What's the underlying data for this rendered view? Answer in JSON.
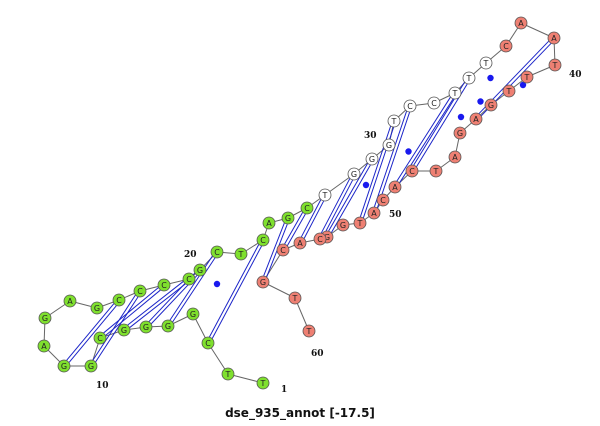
{
  "caption": "dse_935_annot [-17.5]",
  "colors": {
    "green": "#7fe02e",
    "red": "#ee8073",
    "white": "#ffffff",
    "backbone": "#666666",
    "pair_line": "#1c25c8",
    "wobble_dot": "#1919ee"
  },
  "sequence": [
    {
      "n": 1,
      "base": "T",
      "color": "green"
    },
    {
      "n": 2,
      "base": "T",
      "color": "green"
    },
    {
      "n": 3,
      "base": "C",
      "color": "green"
    },
    {
      "n": 4,
      "base": "G",
      "color": "green"
    },
    {
      "n": 5,
      "base": "G",
      "color": "green"
    },
    {
      "n": 6,
      "base": "G",
      "color": "green"
    },
    {
      "n": 7,
      "base": "G",
      "color": "green"
    },
    {
      "n": 8,
      "base": "C",
      "color": "green"
    },
    {
      "n": 9,
      "base": "G",
      "color": "green"
    },
    {
      "n": 10,
      "base": "G",
      "color": "green"
    },
    {
      "n": 11,
      "base": "A",
      "color": "green"
    },
    {
      "n": 12,
      "base": "G",
      "color": "green"
    },
    {
      "n": 13,
      "base": "A",
      "color": "green"
    },
    {
      "n": 14,
      "base": "G",
      "color": "green"
    },
    {
      "n": 15,
      "base": "C",
      "color": "green"
    },
    {
      "n": 16,
      "base": "C",
      "color": "green"
    },
    {
      "n": 17,
      "base": "C",
      "color": "green"
    },
    {
      "n": 18,
      "base": "C",
      "color": "green"
    },
    {
      "n": 19,
      "base": "G",
      "color": "green"
    },
    {
      "n": 20,
      "base": "C",
      "color": "green"
    },
    {
      "n": 21,
      "base": "T",
      "color": "green"
    },
    {
      "n": 22,
      "base": "C",
      "color": "green"
    },
    {
      "n": 23,
      "base": "A",
      "color": "green"
    },
    {
      "n": 24,
      "base": "G",
      "color": "green"
    },
    {
      "n": 25,
      "base": "C",
      "color": "green"
    },
    {
      "n": 26,
      "base": "T",
      "color": "white"
    },
    {
      "n": 27,
      "base": "G",
      "color": "white"
    },
    {
      "n": 28,
      "base": "G",
      "color": "white"
    },
    {
      "n": 29,
      "base": "G",
      "color": "white"
    },
    {
      "n": 30,
      "base": "T",
      "color": "white"
    },
    {
      "n": 31,
      "base": "C",
      "color": "white"
    },
    {
      "n": 32,
      "base": "C",
      "color": "white"
    },
    {
      "n": 33,
      "base": "T",
      "color": "white"
    },
    {
      "n": 34,
      "base": "T",
      "color": "white"
    },
    {
      "n": 35,
      "base": "T",
      "color": "white"
    },
    {
      "n": 36,
      "base": "C",
      "color": "red"
    },
    {
      "n": 37,
      "base": "A",
      "color": "red"
    },
    {
      "n": 38,
      "base": "A",
      "color": "red"
    },
    {
      "n": 39,
      "base": "T",
      "color": "red"
    },
    {
      "n": 40,
      "base": "T",
      "color": "red"
    },
    {
      "n": 41,
      "base": "T",
      "color": "red"
    },
    {
      "n": 42,
      "base": "G",
      "color": "red"
    },
    {
      "n": 43,
      "base": "A",
      "color": "red"
    },
    {
      "n": 44,
      "base": "G",
      "color": "red"
    },
    {
      "n": 45,
      "base": "A",
      "color": "red"
    },
    {
      "n": 46,
      "base": "T",
      "color": "red"
    },
    {
      "n": 47,
      "base": "C",
      "color": "red"
    },
    {
      "n": 48,
      "base": "A",
      "color": "red"
    },
    {
      "n": 49,
      "base": "C",
      "color": "red"
    },
    {
      "n": 50,
      "base": "A",
      "color": "red"
    },
    {
      "n": 51,
      "base": "T",
      "color": "red"
    },
    {
      "n": 52,
      "base": "G",
      "color": "red"
    },
    {
      "n": 53,
      "base": "G",
      "color": "red"
    },
    {
      "n": 54,
      "base": "C",
      "color": "red"
    },
    {
      "n": 55,
      "base": "A",
      "color": "red"
    },
    {
      "n": 56,
      "base": "C",
      "color": "red"
    },
    {
      "n": 57,
      "base": "G",
      "color": "red"
    },
    {
      "n": 58,
      "base": "T",
      "color": "red"
    },
    {
      "n": 59,
      "base": "T",
      "color": "red"
    }
  ],
  "pairs": [
    {
      "i": 3,
      "j": 22,
      "type": "canonical"
    },
    {
      "i": 4,
      "j": 21,
      "type": "wobble"
    },
    {
      "i": 5,
      "j": 20,
      "type": "canonical"
    },
    {
      "i": 6,
      "j": 19,
      "type": "canonical"
    },
    {
      "i": 7,
      "j": 18,
      "type": "canonical"
    },
    {
      "i": 8,
      "j": 17,
      "type": "canonical"
    },
    {
      "i": 9,
      "j": 16,
      "type": "canonical"
    },
    {
      "i": 10,
      "j": 15,
      "type": "canonical"
    },
    {
      "i": 24,
      "j": 57,
      "type": "canonical"
    },
    {
      "i": 25,
      "j": 56,
      "type": "canonical"
    },
    {
      "i": 26,
      "j": 55,
      "type": "canonical"
    },
    {
      "i": 27,
      "j": 54,
      "type": "canonical"
    },
    {
      "i": 28,
      "j": 53,
      "type": "canonical"
    },
    {
      "i": 29,
      "j": 52,
      "type": "wobble"
    },
    {
      "i": 30,
      "j": 51,
      "type": "canonical"
    },
    {
      "i": 31,
      "j": 50,
      "type": "canonical"
    },
    {
      "i": 32,
      "j": 49,
      "type": "wobble"
    },
    {
      "i": 33,
      "j": 48,
      "type": "canonical"
    },
    {
      "i": 34,
      "j": 47,
      "type": "canonical"
    },
    {
      "i": 35,
      "j": 46,
      "type": "wobble"
    },
    {
      "i": 36,
      "j": 45,
      "type": "wobble"
    },
    {
      "i": 37,
      "j": 44,
      "type": "wobble"
    },
    {
      "i": 38,
      "j": 43,
      "type": "canonical"
    },
    {
      "i": 39,
      "j": 42,
      "type": "wobble"
    }
  ],
  "position_labels": [
    "1",
    "10",
    "20",
    "30",
    "40",
    "50",
    "60"
  ]
}
